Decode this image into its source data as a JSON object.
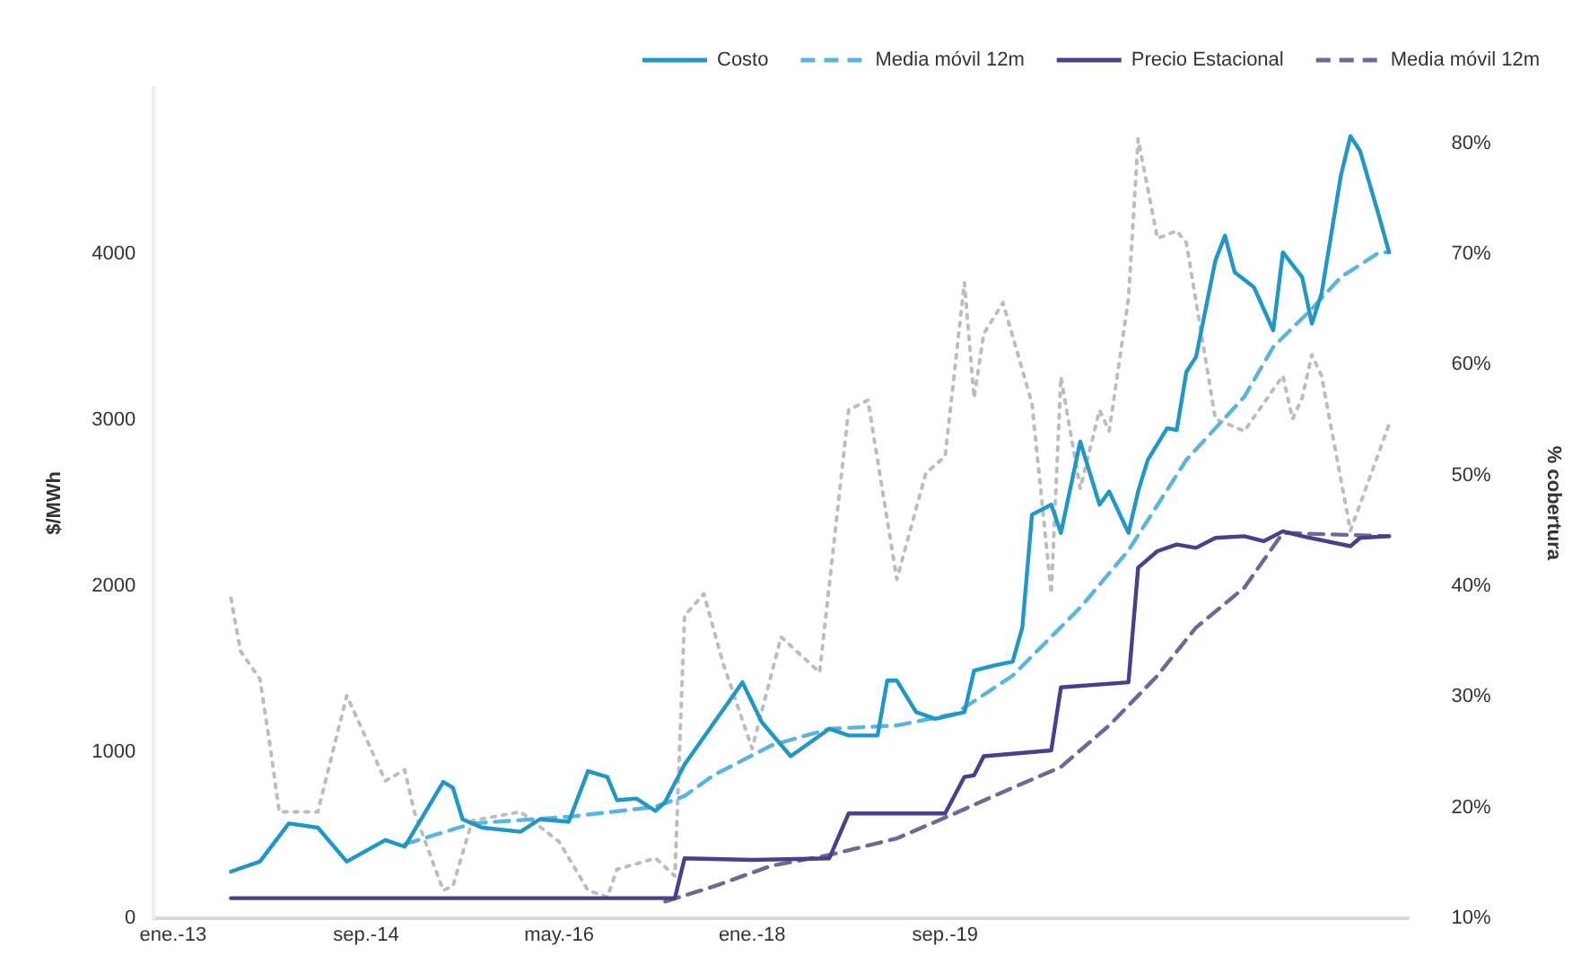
{
  "chart_data": {
    "type": "line",
    "ylabel": "$/MWh",
    "y2label": "% cobertura",
    "xlim": [
      "2012-11",
      "2023-09"
    ],
    "xticks": [
      {
        "value": "2013-01",
        "label": "ene.-13"
      },
      {
        "value": "2014-09",
        "label": "sep.-14"
      },
      {
        "value": "2016-05",
        "label": "may.-16"
      },
      {
        "value": "2018-01",
        "label": "ene.-18"
      },
      {
        "value": "2019-09",
        "label": "sep.-19"
      }
    ],
    "ylim": [
      0,
      5000
    ],
    "yticks": [
      0,
      1000,
      2000,
      3000,
      4000
    ],
    "y2lim": [
      10,
      85
    ],
    "y2ticks": [
      {
        "value": 10,
        "label": "10%"
      },
      {
        "value": 20,
        "label": "20%"
      },
      {
        "value": 30,
        "label": "30%"
      },
      {
        "value": 40,
        "label": "40%"
      },
      {
        "value": 50,
        "label": "50%"
      },
      {
        "value": 60,
        "label": "60%"
      },
      {
        "value": 70,
        "label": "70%"
      },
      {
        "value": 80,
        "label": "80%"
      }
    ],
    "grid": false,
    "legend": "top",
    "marker": "none",
    "series": [
      {
        "name": "Costo",
        "color": "#1f97c7",
        "line_style": "solid",
        "x": [
          "2013-07",
          "2013-10",
          "2014-01",
          "2014-04",
          "2014-07",
          "2014-11",
          "2015-01",
          "2015-05",
          "2015-06",
          "2015-07",
          "2015-09",
          "2016-01",
          "2016-03",
          "2016-06",
          "2016-08",
          "2016-10",
          "2016-11",
          "2017-01",
          "2017-03",
          "2017-04",
          "2017-06",
          "2017-12",
          "2018-02",
          "2018-05",
          "2018-09",
          "2018-11",
          "2019-02",
          "2019-03",
          "2019-04",
          "2019-06",
          "2019-08",
          "2019-11",
          "2019-12",
          "2020-02",
          "2020-04",
          "2020-05",
          "2020-06",
          "2020-08",
          "2020-09",
          "2020-11",
          "2021-01",
          "2021-02",
          "2021-04",
          "2021-05",
          "2021-06",
          "2021-08",
          "2021-09",
          "2021-10",
          "2021-11",
          "2022-01",
          "2022-02",
          "2022-03",
          "2022-05",
          "2022-06",
          "2022-07",
          "2022-08",
          "2022-10",
          "2022-11",
          "2022-12",
          "2023-02",
          "2023-03",
          "2023-04",
          "2023-06",
          "2023-07"
        ],
        "values": [
          280,
          340,
          570,
          545,
          340,
          470,
          430,
          820,
          785,
          595,
          545,
          520,
          595,
          580,
          885,
          850,
          710,
          720,
          645,
          700,
          925,
          1420,
          1180,
          975,
          1140,
          1100,
          1100,
          1430,
          1430,
          1240,
          1200,
          1240,
          1490,
          1520,
          1545,
          1750,
          2430,
          2490,
          2320,
          2870,
          2490,
          2570,
          2320,
          2570,
          2760,
          2950,
          2940,
          3290,
          3380,
          3960,
          4110,
          3890,
          3800,
          3670,
          3540,
          4010,
          3860,
          3580,
          3760,
          4470,
          4710,
          4620,
          4220,
          4010
        ]
      },
      {
        "name": "Media móvil 12m",
        "color": "#5bb5da",
        "line_style": "dashed",
        "x": [
          "2015-01",
          "2015-08",
          "2016-06",
          "2017-03",
          "2017-06",
          "2017-09",
          "2018-03",
          "2018-09",
          "2019-04",
          "2019-10",
          "2020-04",
          "2020-11",
          "2021-04",
          "2021-10",
          "2022-04",
          "2022-07",
          "2022-11",
          "2023-02",
          "2023-06",
          "2023-07"
        ],
        "values": [
          445,
          570,
          610,
          670,
          735,
          860,
          1040,
          1140,
          1160,
          1230,
          1460,
          1870,
          2215,
          2760,
          3140,
          3440,
          3670,
          3860,
          4010,
          4010
        ]
      },
      {
        "name": "Precio Estacional",
        "color": "#4a3f8a",
        "line_style": "solid",
        "x": [
          "2013-07",
          "2017-05",
          "2017-06",
          "2018-01",
          "2018-09",
          "2018-11",
          "2019-09",
          "2019-11",
          "2019-12",
          "2020-01",
          "2020-08",
          "2020-09",
          "2021-04",
          "2021-05",
          "2021-07",
          "2021-09",
          "2021-11",
          "2022-01",
          "2022-04",
          "2022-06",
          "2022-08",
          "2022-10",
          "2023-03",
          "2023-04",
          "2023-07"
        ],
        "values": [
          120,
          120,
          360,
          350,
          360,
          630,
          630,
          850,
          860,
          975,
          1010,
          1390,
          1420,
          2110,
          2210,
          2250,
          2230,
          2290,
          2300,
          2270,
          2330,
          2300,
          2240,
          2290,
          2300
        ]
      },
      {
        "name": "Media móvil 12m",
        "color": "#6d6896",
        "line_style": "dashed",
        "x": [
          "2017-04",
          "2017-09",
          "2018-03",
          "2018-09",
          "2019-04",
          "2019-10",
          "2020-04",
          "2020-09",
          "2021-02",
          "2021-07",
          "2021-11",
          "2022-04",
          "2022-08",
          "2023-07"
        ],
        "values": [
          100,
          190,
          315,
          380,
          480,
          630,
          785,
          910,
          1160,
          1460,
          1750,
          1990,
          2320,
          2300
        ]
      },
      {
        "color": "#bdbdbd",
        "line_style": "dotted",
        "axis": "y2",
        "x": [
          "2013-07",
          "2013-08",
          "2013-10",
          "2013-11",
          "2013-12",
          "2014-04",
          "2014-07",
          "2014-11",
          "2015-01",
          "2015-02",
          "2015-05",
          "2015-06",
          "2015-08",
          "2016-01",
          "2016-05",
          "2016-08",
          "2016-10",
          "2016-11",
          "2017-03",
          "2017-05",
          "2017-06",
          "2017-08",
          "2017-10",
          "2018-01",
          "2018-04",
          "2018-08",
          "2018-11",
          "2019-01",
          "2019-04",
          "2019-07",
          "2019-09",
          "2019-11",
          "2019-12",
          "2020-01",
          "2020-03",
          "2020-06",
          "2020-08",
          "2020-09",
          "2020-11",
          "2021-01",
          "2021-02",
          "2021-04",
          "2021-05",
          "2021-07",
          "2021-09",
          "2021-10",
          "2022-01",
          "2022-04",
          "2022-08",
          "2022-09",
          "2022-10",
          "2022-11",
          "2022-12",
          "2023-03",
          "2023-07"
        ],
        "values": [
          38.9,
          34.1,
          31.6,
          25.9,
          19.6,
          19.6,
          30.1,
          22.4,
          23.4,
          19.6,
          12.5,
          12.9,
          18.8,
          19.6,
          16.9,
          12.5,
          11.9,
          14.4,
          15.4,
          13.8,
          37.3,
          39.3,
          33,
          25.3,
          35.4,
          32.2,
          55.9,
          56.8,
          40.6,
          50.2,
          51.7,
          67.4,
          57,
          62.8,
          65.6,
          56.5,
          39.3,
          58.9,
          48.8,
          55.9,
          54,
          66,
          80.4,
          71.4,
          72.1,
          71,
          55.1,
          54,
          59,
          55.1,
          57,
          60.9,
          59,
          45,
          54.6
        ]
      }
    ]
  }
}
